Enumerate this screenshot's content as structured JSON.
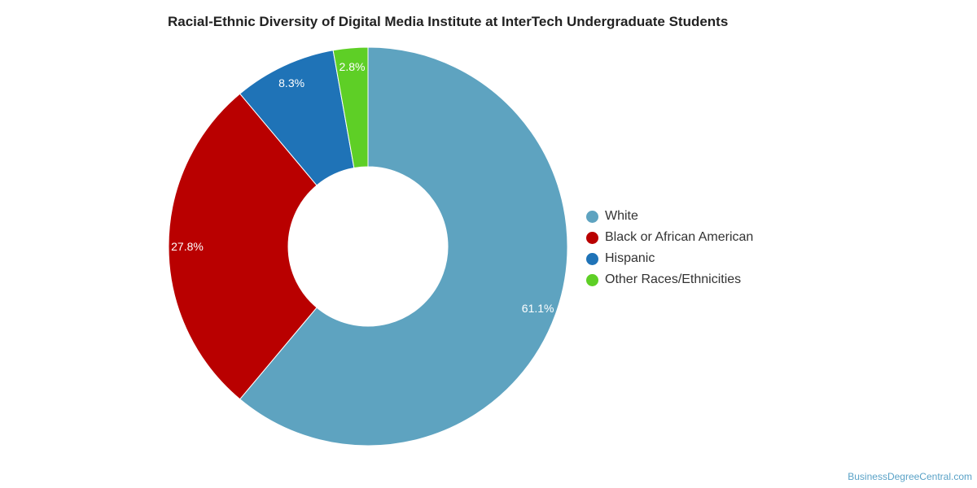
{
  "chart_data": {
    "type": "pie",
    "title": "Racial-Ethnic Diversity of Digital Media Institute at InterTech Undergraduate Students",
    "donut": true,
    "legend_position": "right",
    "categories": [
      "White",
      "Black or African American",
      "Hispanic",
      "Other Races/Ethnicities"
    ],
    "values": [
      61.1,
      27.8,
      8.3,
      2.8
    ],
    "value_labels": [
      "61.1%",
      "27.8%",
      "8.3%",
      "2.8%"
    ],
    "colors": [
      "#5ea3c0",
      "#b90000",
      "#1f73b7",
      "#5ecf26"
    ]
  },
  "footer": {
    "source": "BusinessDegreeCentral.com"
  }
}
